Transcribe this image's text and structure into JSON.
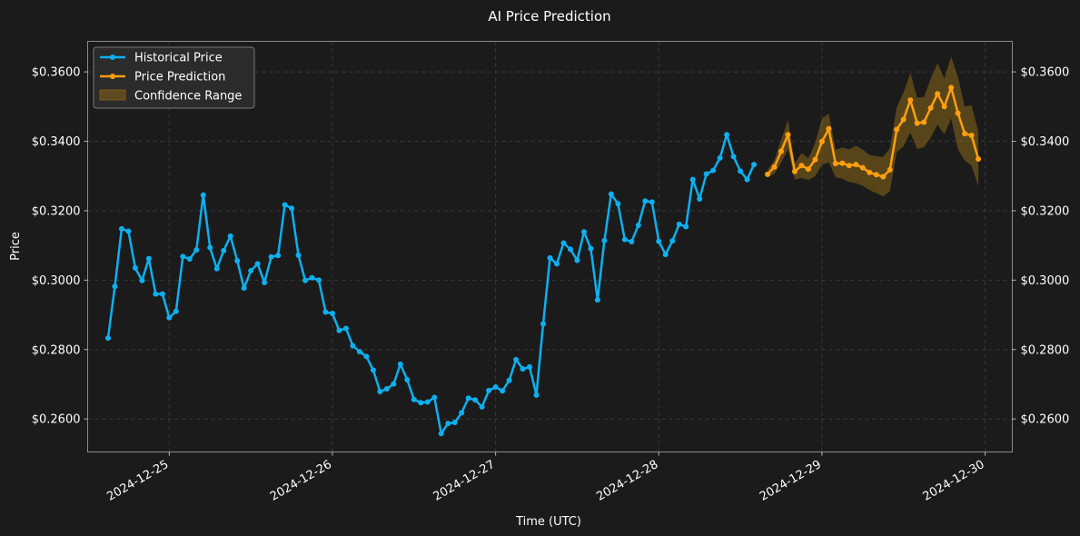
{
  "chart_data": {
    "type": "line",
    "title": "AI Price Prediction",
    "xlabel": "Time (UTC)",
    "ylabel": "Price",
    "xlim": [
      "2024-12-24 12:00",
      "2024-12-30 04:00"
    ],
    "ylim": [
      0.2505,
      0.3688
    ],
    "x_ticks": [
      "2024-12-25",
      "2024-12-26",
      "2024-12-27",
      "2024-12-28",
      "2024-12-29",
      "2024-12-30"
    ],
    "y_ticks": [
      "$0.2600",
      "$0.2800",
      "$0.3000",
      "$0.3200",
      "$0.3400",
      "$0.3600"
    ],
    "y_tick_values": [
      0.26,
      0.28,
      0.3,
      0.32,
      0.34,
      0.36
    ],
    "grid": true,
    "legend_position": "top-left",
    "colors": {
      "background": "#1b1b1b",
      "historical": "#0db0f0",
      "prediction": "#ff9f0f",
      "confidence": "#7a5a1c",
      "grid": "#3a3a3a",
      "frame": "#8a8a8a"
    },
    "series": [
      {
        "name": "Historical Price",
        "x_start": "2024-12-24 15:00",
        "step_hours": 1,
        "values": [
          0.2833,
          0.2982,
          0.3148,
          0.3141,
          0.3035,
          0.2999,
          0.3062,
          0.296,
          0.296,
          0.2892,
          0.291,
          0.3068,
          0.3061,
          0.3087,
          0.3245,
          0.3094,
          0.3033,
          0.3085,
          0.3127,
          0.3056,
          0.2977,
          0.3027,
          0.3047,
          0.2993,
          0.3067,
          0.3071,
          0.3217,
          0.3207,
          0.3072,
          0.2999,
          0.3007,
          0.3,
          0.2908,
          0.2904,
          0.2855,
          0.2861,
          0.2811,
          0.2794,
          0.278,
          0.2741,
          0.2679,
          0.2687,
          0.2701,
          0.2758,
          0.2713,
          0.2656,
          0.2647,
          0.2649,
          0.2662,
          0.2558,
          0.2587,
          0.259,
          0.2618,
          0.266,
          0.2655,
          0.2635,
          0.2682,
          0.2692,
          0.2681,
          0.2711,
          0.2771,
          0.2744,
          0.275,
          0.2669,
          0.2874,
          0.3064,
          0.3047,
          0.3107,
          0.3089,
          0.3057,
          0.3139,
          0.3091,
          0.2943,
          0.3114,
          0.3248,
          0.322,
          0.3117,
          0.3111,
          0.3158,
          0.3228,
          0.3225,
          0.3112,
          0.3074,
          0.3113,
          0.3161,
          0.3154,
          0.329,
          0.3234,
          0.3306,
          0.3316,
          0.3352,
          0.3419,
          0.3356,
          0.3314,
          0.329,
          0.3333
        ]
      },
      {
        "name": "Price Prediction",
        "x_start": "2024-12-28 16:00",
        "step_hours": 1,
        "values": [
          0.3305,
          0.3326,
          0.3371,
          0.3419,
          0.3313,
          0.333,
          0.332,
          0.3347,
          0.3399,
          0.3436,
          0.3336,
          0.3337,
          0.333,
          0.3333,
          0.3324,
          0.331,
          0.3304,
          0.3298,
          0.3318,
          0.3434,
          0.3463,
          0.3519,
          0.3452,
          0.3455,
          0.3496,
          0.3537,
          0.35,
          0.3555,
          0.3481,
          0.3422,
          0.3417,
          0.3349
        ]
      }
    ],
    "confidence": {
      "name": "Confidence Range",
      "lower": [
        0.3297,
        0.3306,
        0.3339,
        0.3376,
        0.329,
        0.3294,
        0.3289,
        0.3299,
        0.3332,
        0.334,
        0.3296,
        0.3292,
        0.3283,
        0.3279,
        0.3272,
        0.3259,
        0.3251,
        0.3241,
        0.3256,
        0.3369,
        0.3386,
        0.3425,
        0.3378,
        0.3383,
        0.3411,
        0.3448,
        0.342,
        0.3466,
        0.3377,
        0.3344,
        0.333,
        0.327
      ],
      "upper": [
        0.3318,
        0.3346,
        0.3403,
        0.3462,
        0.3336,
        0.3366,
        0.3351,
        0.3395,
        0.3466,
        0.348,
        0.3376,
        0.3382,
        0.3377,
        0.3387,
        0.3376,
        0.3361,
        0.3357,
        0.3355,
        0.338,
        0.3499,
        0.354,
        0.3597,
        0.3526,
        0.3527,
        0.3581,
        0.3626,
        0.358,
        0.3644,
        0.3585,
        0.35,
        0.3504,
        0.3428
      ]
    }
  }
}
